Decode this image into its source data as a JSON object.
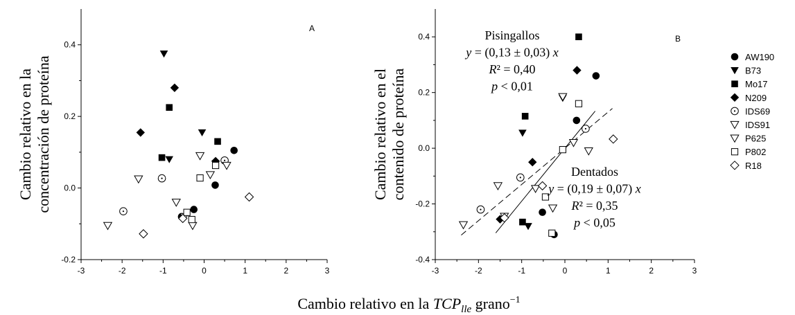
{
  "chart_data": [
    {
      "type": "scatter",
      "panel_label": "A",
      "ylabel_lines": [
        "Cambio relativo en la",
        "concentración de proteína"
      ],
      "xlim": [
        -3,
        3
      ],
      "ylim": [
        -0.2,
        0.5
      ],
      "xticks": [
        "-3",
        "-2",
        "-1",
        "0",
        "1",
        "2",
        "3"
      ],
      "yticks": [
        "-0.2",
        "0.0",
        "0.2",
        "0.4"
      ],
      "series": [
        {
          "name": "AW190",
          "points": [
            [
              0.73,
              0.105
            ],
            [
              0.27,
              0.008
            ],
            [
              -0.25,
              -0.06
            ],
            [
              -0.55,
              -0.08
            ]
          ]
        },
        {
          "name": "B73",
          "points": [
            [
              -0.98,
              0.375
            ],
            [
              -0.85,
              0.08
            ],
            [
              -0.05,
              0.155
            ]
          ]
        },
        {
          "name": "Mo17",
          "points": [
            [
              -0.85,
              0.225
            ],
            [
              -1.03,
              0.085
            ],
            [
              0.33,
              0.13
            ]
          ]
        },
        {
          "name": "N209",
          "points": [
            [
              -0.72,
              0.28
            ],
            [
              -1.55,
              0.155
            ],
            [
              0.28,
              0.075
            ]
          ]
        },
        {
          "name": "IDS69",
          "points": [
            [
              -1.97,
              -0.065
            ],
            [
              -1.03,
              0.027
            ],
            [
              0.5,
              0.077
            ]
          ]
        },
        {
          "name": "IDS91",
          "points": [
            [
              -2.35,
              -0.105
            ],
            [
              -1.6,
              0.025
            ],
            [
              -0.1,
              0.09
            ],
            [
              0.15,
              0.037
            ],
            [
              0.55,
              0.063
            ],
            [
              -0.28,
              -0.105
            ]
          ]
        },
        {
          "name": "P625",
          "points": [
            [
              -0.68,
              -0.04
            ],
            [
              -0.48,
              -0.08
            ]
          ]
        },
        {
          "name": "P802",
          "points": [
            [
              -0.1,
              0.028
            ],
            [
              0.28,
              0.063
            ],
            [
              -0.3,
              -0.088
            ],
            [
              -0.42,
              -0.068
            ]
          ]
        },
        {
          "name": "R18",
          "points": [
            [
              -1.48,
              -0.128
            ],
            [
              1.1,
              -0.025
            ],
            [
              -0.52,
              -0.085
            ]
          ]
        }
      ],
      "annotations": []
    },
    {
      "type": "scatter",
      "panel_label": "B",
      "ylabel_lines": [
        "Cambio relativo en el",
        "contenido de proteína"
      ],
      "xlim": [
        -3,
        3
      ],
      "ylim": [
        -0.4,
        0.5
      ],
      "xticks": [
        "-3",
        "-2",
        "-1",
        "0",
        "1",
        "2",
        "3"
      ],
      "yticks": [
        "-0.4",
        "-0.2",
        "0.0",
        "0.2",
        "0.4"
      ],
      "series": [
        {
          "name": "AW190",
          "points": [
            [
              0.72,
              0.26
            ],
            [
              0.27,
              0.1
            ],
            [
              -0.52,
              -0.23
            ],
            [
              -0.25,
              -0.31
            ]
          ]
        },
        {
          "name": "B73",
          "points": [
            [
              -0.98,
              0.055
            ],
            [
              -0.85,
              -0.28
            ],
            [
              -0.05,
              0.18
            ]
          ]
        },
        {
          "name": "Mo17",
          "points": [
            [
              0.32,
              0.4
            ],
            [
              -0.92,
              0.115
            ],
            [
              -0.98,
              -0.265
            ]
          ]
        },
        {
          "name": "N209",
          "points": [
            [
              0.28,
              0.28
            ],
            [
              -0.75,
              -0.05
            ],
            [
              -1.5,
              -0.255
            ]
          ]
        },
        {
          "name": "IDS69",
          "points": [
            [
              -1.95,
              -0.22
            ],
            [
              -1.03,
              -0.105
            ],
            [
              0.48,
              0.07
            ]
          ]
        },
        {
          "name": "IDS91",
          "points": [
            [
              -2.35,
              -0.275
            ],
            [
              -1.55,
              -0.135
            ],
            [
              -0.05,
              0.185
            ],
            [
              0.2,
              0.02
            ],
            [
              0.55,
              -0.01
            ],
            [
              -0.28,
              -0.215
            ]
          ]
        },
        {
          "name": "P625",
          "points": [
            [
              -0.68,
              -0.145
            ],
            [
              -1.4,
              -0.245
            ]
          ]
        },
        {
          "name": "P802",
          "points": [
            [
              0.32,
              0.16
            ],
            [
              -0.05,
              -0.005
            ],
            [
              -0.45,
              -0.175
            ],
            [
              -0.3,
              -0.305
            ]
          ]
        },
        {
          "name": "R18",
          "points": [
            [
              1.12,
              0.033
            ],
            [
              -0.52,
              -0.135
            ],
            [
              -1.4,
              -0.25
            ]
          ]
        }
      ],
      "lines": [
        {
          "name": "Pisingallos",
          "style": "dashed",
          "slope": 0.13,
          "x_range": [
            -2.4,
            1.1
          ]
        },
        {
          "name": "Dentados",
          "style": "solid",
          "slope": 0.19,
          "x_range": [
            -1.6,
            0.7
          ]
        }
      ],
      "annotations": [
        {
          "id": "pis",
          "lines": [
            "Pisingallos",
            "y = (0,13 ± 0,03) x",
            "R² = 0,40",
            "p < 0,01"
          ]
        },
        {
          "id": "den",
          "lines": [
            "Dentados",
            "y = (0,19 ± 0,07) x",
            "R² = 0,35",
            "p < 0,05"
          ]
        }
      ]
    }
  ],
  "xlabel_parts": [
    "Cambio relativo en la ",
    "TCP",
    "lle",
    " grano",
    "−1"
  ],
  "legend": {
    "position": "right",
    "entries": [
      {
        "name": "AW190",
        "marker": "circle-filled"
      },
      {
        "name": "B73",
        "marker": "triangle-down-filled"
      },
      {
        "name": "Mo17",
        "marker": "square-filled"
      },
      {
        "name": "N209",
        "marker": "diamond-filled"
      },
      {
        "name": "IDS69",
        "marker": "circle-dot"
      },
      {
        "name": "IDS91",
        "marker": "triangle-down-open"
      },
      {
        "name": "P625",
        "marker": "triangle-down-open"
      },
      {
        "name": "P802",
        "marker": "square-open"
      },
      {
        "name": "R18",
        "marker": "diamond-open"
      }
    ]
  }
}
